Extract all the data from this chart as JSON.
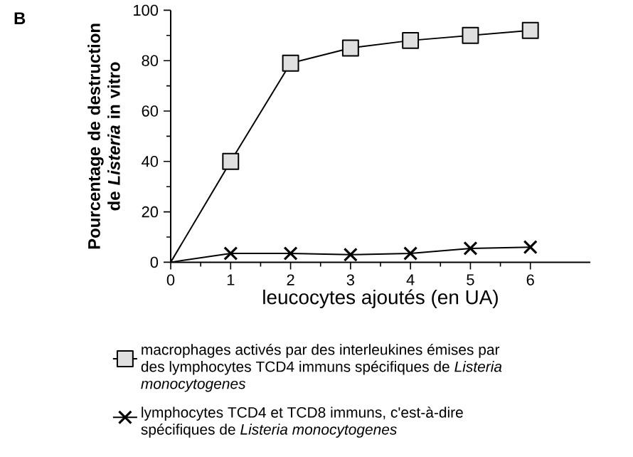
{
  "chart_data": {
    "type": "line",
    "xlabel": "leucocytes ajoutés (en UA)",
    "ylabel": "Pourcentage de destruction de *Listeria* in vitro",
    "x": [
      0,
      1,
      2,
      3,
      4,
      5,
      6
    ],
    "xlim": [
      0,
      7
    ],
    "xticks": [
      0,
      1,
      2,
      3,
      4,
      5,
      6
    ],
    "ylim": [
      0,
      100
    ],
    "yticks": [
      0,
      20,
      40,
      60,
      80,
      100
    ],
    "legend": "bottom",
    "grid": false,
    "line_style": "solid",
    "annotations": [
      "B"
    ],
    "series": [
      {
        "name": "macrophages activés par des interleukines émises par des lymphocytes TCD4 immuns spécifiques de *Listeria monocytogenes*",
        "color": "#000000",
        "marker": "square",
        "values": [
          0,
          40,
          79,
          85,
          88,
          90,
          92
        ]
      },
      {
        "name": "lymphocytes TCD4 et TCD8 immuns, c'est-à-dire spécifiques de *Listeria monocytogenes*",
        "color": "#000000",
        "marker": "cross",
        "values": [
          0,
          3.5,
          3.5,
          3,
          3.5,
          5.5,
          6
        ]
      }
    ]
  }
}
